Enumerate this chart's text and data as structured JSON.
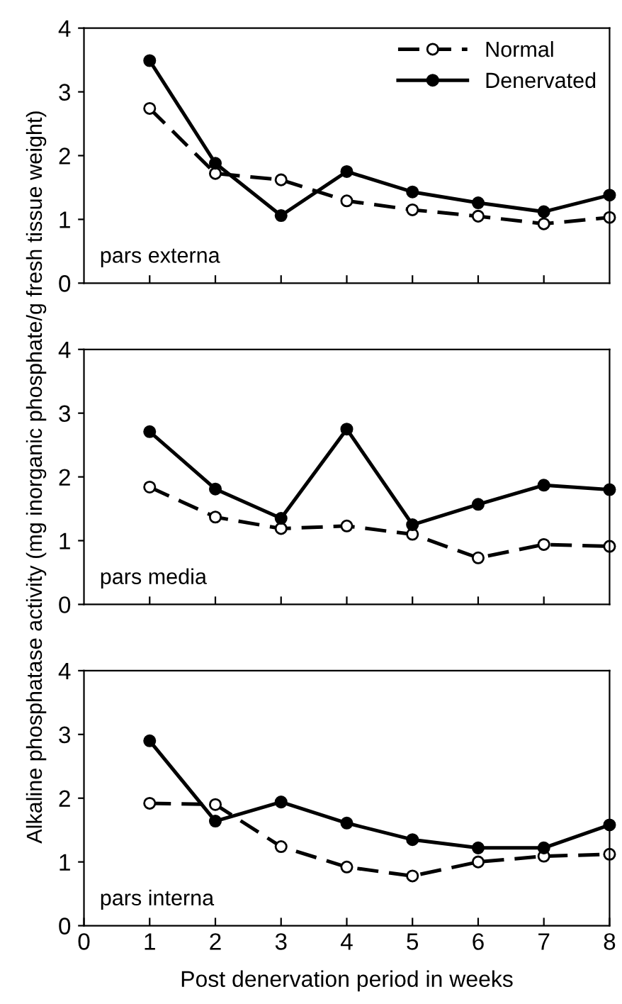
{
  "chart_data": [
    {
      "type": "line",
      "x": [
        1,
        2,
        3,
        4,
        5,
        6,
        7,
        8
      ],
      "xlim": [
        0,
        8
      ],
      "ylim": [
        0,
        4
      ],
      "yticks": [
        0,
        1,
        2,
        3,
        4
      ],
      "xticks": [
        {
          "value": 1,
          "label": null
        },
        {
          "value": 2,
          "label": null
        },
        {
          "value": 3,
          "label": null
        },
        {
          "value": 4,
          "label": null
        },
        {
          "value": 5,
          "label": null
        },
        {
          "value": 6,
          "label": null
        },
        {
          "value": 7,
          "label": null
        }
      ],
      "tick_labels": "y",
      "marker": "circle",
      "legend": "top right",
      "grid": false,
      "annotations": [
        "pars externa"
      ],
      "series": [
        {
          "name": "Normal",
          "color": "#000000",
          "line_style": "dashed",
          "values": [
            2.74,
            1.72,
            1.62,
            1.29,
            1.15,
            1.05,
            0.93,
            1.03
          ]
        },
        {
          "name": "Denervated",
          "color": "#000000",
          "line_style": "solid",
          "values": [
            3.49,
            1.88,
            1.06,
            1.75,
            1.43,
            1.26,
            1.12,
            1.38
          ]
        }
      ]
    },
    {
      "type": "line",
      "x": [
        1,
        2,
        3,
        4,
        5,
        6,
        7,
        8
      ],
      "xlim": [
        0,
        8
      ],
      "ylim": [
        0,
        4
      ],
      "yticks": [
        0,
        1,
        2,
        3,
        4
      ],
      "xticks": [
        {
          "value": 1,
          "label": null
        },
        {
          "value": 2,
          "label": null
        },
        {
          "value": 3,
          "label": null
        },
        {
          "value": 4,
          "label": null
        },
        {
          "value": 5,
          "label": null
        },
        {
          "value": 6,
          "label": null
        },
        {
          "value": 7,
          "label": null
        }
      ],
      "tick_labels": "y",
      "marker": "circle",
      "grid": false,
      "annotations": [
        "pars media"
      ],
      "ylabel": "Alkaline phosphatase activity (mg inorganic phosphate/g fresh tissue weight)",
      "series": [
        {
          "color": "#000000",
          "line_style": "dashed",
          "values": [
            1.84,
            1.37,
            1.19,
            1.23,
            1.1,
            0.73,
            0.94,
            0.91
          ]
        },
        {
          "color": "#000000",
          "line_style": "solid",
          "values": [
            2.71,
            1.81,
            1.35,
            2.75,
            1.25,
            1.57,
            1.87,
            1.8
          ]
        }
      ]
    },
    {
      "type": "line",
      "x": [
        1,
        2,
        3,
        4,
        5,
        6,
        7,
        8
      ],
      "xlim": [
        0,
        8
      ],
      "ylim": [
        0,
        4
      ],
      "yticks": [
        0,
        1,
        2,
        3,
        4
      ],
      "xticks": [
        0,
        1,
        2,
        3,
        4,
        5,
        6,
        7,
        8
      ],
      "marker": "circle",
      "grid": false,
      "annotations": [
        "pars interna"
      ],
      "xlabel": "Post denervation period in weeks",
      "series": [
        {
          "color": "#000000",
          "line_style": "dashed",
          "values": [
            1.92,
            1.9,
            1.24,
            0.92,
            0.78,
            1.0,
            1.09,
            1.12
          ]
        },
        {
          "color": "#000000",
          "line_style": "solid",
          "values": [
            2.9,
            1.64,
            1.94,
            1.61,
            1.35,
            1.22,
            1.22,
            1.58
          ]
        }
      ]
    }
  ]
}
